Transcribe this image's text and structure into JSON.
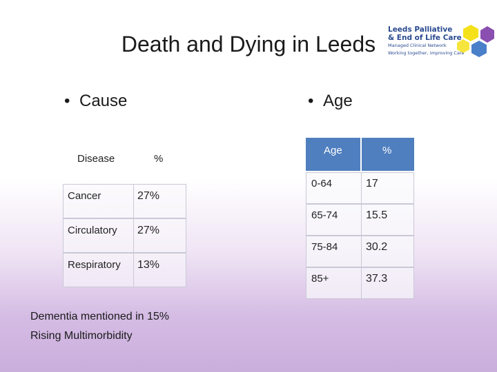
{
  "slide": {
    "title": "Death and Dying in Leeds"
  },
  "logo": {
    "line1": "Leeds Palliative",
    "line2": "& End of Life Care",
    "line3": "Managed Clinical Network",
    "line4": "Working together, improving Care",
    "colors": {
      "yellow": "#f5e11a",
      "blue": "#4a7fc9",
      "purple": "#8a4fb0",
      "text": "#2a4a8f"
    }
  },
  "left": {
    "bullet": "Cause",
    "table": {
      "headers": [
        "Disease",
        "%"
      ],
      "rows": [
        {
          "disease": "Cancer",
          "pct": "27%"
        },
        {
          "disease": "Circulatory",
          "pct": "27%"
        },
        {
          "disease": "Respiratory",
          "pct": "13%"
        }
      ]
    },
    "notes": [
      "Dementia mentioned in 15%",
      "Rising Multimorbidity"
    ]
  },
  "right": {
    "bullet": "Age",
    "table": {
      "headers": [
        "Age",
        "%"
      ],
      "rows": [
        {
          "age": "0-64",
          "pct": "17"
        },
        {
          "age": "65-74",
          "pct": "15.5"
        },
        {
          "age": "75-84",
          "pct": "30.2"
        },
        {
          "age": "85+",
          "pct": "37.3"
        }
      ]
    }
  },
  "colors": {
    "header_blue": "#4f7fbe",
    "gradient_bottom": "#c9aedc"
  }
}
